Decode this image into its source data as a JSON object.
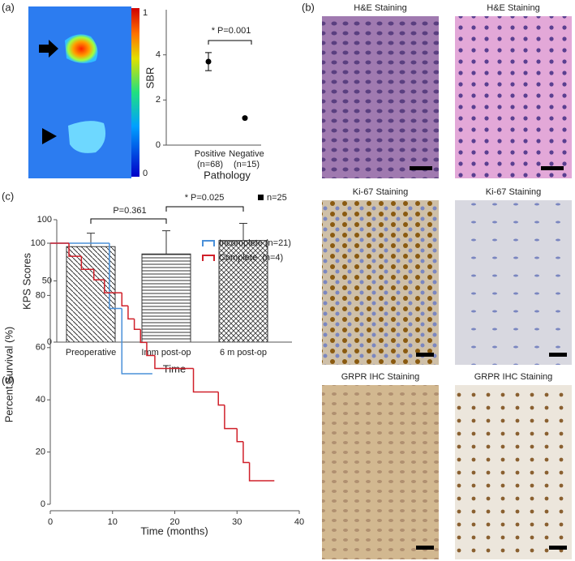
{
  "chart_data": [
    {
      "type": "heatmap_image",
      "label": "(a)",
      "clim": [
        0,
        1
      ],
      "colorbar_ticks": [
        0,
        1
      ]
    },
    {
      "type": "scatter",
      "y_label": "SBR",
      "x_label": "Pathology",
      "categories": [
        "Positive",
        "Negative"
      ],
      "category_notes": [
        "(n=68)",
        "(n=15)"
      ],
      "values": [
        3.7,
        1.2
      ],
      "errors": [
        0.4,
        null
      ],
      "ylim": [
        0,
        6
      ],
      "yticks": [
        0,
        2,
        4
      ],
      "annotation": "* P=0.001",
      "color": "#000000"
    },
    {
      "type": "image_grid",
      "label": "(b)",
      "titles": [
        "H&E Staining",
        "H&E Staining",
        "Ki-67 Staining",
        "Ki-67 Staining",
        "GRPR IHC Staining",
        "GRPR IHC Staining"
      ]
    },
    {
      "type": "bar",
      "label": "(c)",
      "y_label": "KPS Scores",
      "x_label": "Time",
      "categories": [
        "Preoperative",
        "Imm post-op",
        "6 m post-op"
      ],
      "values": [
        78,
        72,
        83
      ],
      "errors": [
        11,
        19,
        14
      ],
      "ylim": [
        0,
        100
      ],
      "yticks": [
        0,
        50,
        100
      ],
      "annotations": [
        "P=0.361",
        "* P=0.025"
      ],
      "legend": "n=25"
    },
    {
      "type": "step_line",
      "label": "(d)",
      "y_label": "Percent Survival (%)",
      "x_label": "Time (months)",
      "xlim": [
        0,
        40
      ],
      "xticks": [
        0,
        10,
        20,
        30,
        40
      ],
      "ylim": [
        0,
        100
      ],
      "yticks": [
        0,
        20,
        40,
        60,
        80,
        100
      ],
      "series": [
        {
          "name": "Incomplete (n=21)",
          "color": "#4a90d9",
          "x": [
            0,
            9.5,
            11.5,
            16.4
          ],
          "values": [
            100,
            75,
            50,
            50
          ]
        },
        {
          "name": "Complete  (n=4)",
          "color": "#d0202a",
          "x": [
            0,
            3,
            5,
            7,
            8.7,
            11.5,
            12.5,
            13.5,
            14.5,
            15.5,
            16.8,
            23,
            27,
            28,
            30,
            31,
            32,
            36
          ],
          "values": [
            100,
            95,
            90,
            86,
            81,
            76,
            71,
            67,
            62,
            57,
            52,
            43,
            38,
            29,
            24,
            16,
            9,
            9
          ]
        }
      ]
    }
  ]
}
